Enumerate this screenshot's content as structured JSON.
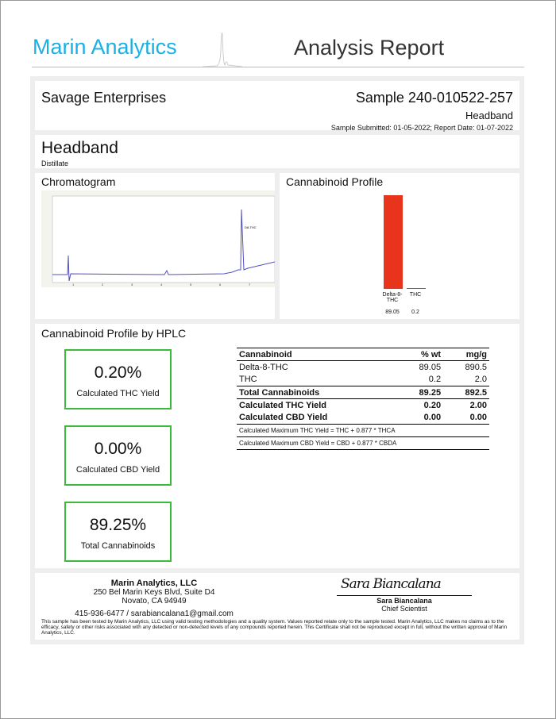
{
  "header": {
    "brand": "Marin Analytics",
    "title": "Analysis Report"
  },
  "client": {
    "name": "Savage Enterprises",
    "sample": "Sample 240-010522-257",
    "product": "Headband",
    "dates": "Sample Submitted: 01-05-2022;  Report Date: 01-07-2022"
  },
  "product": {
    "name": "Headband",
    "type": "Distillate"
  },
  "chromatogram": {
    "title": "Chromatogram",
    "peak_label": "D8-THC",
    "x_ticks": [
      "1",
      "2",
      "3",
      "4",
      "5",
      "6",
      "7"
    ]
  },
  "profile": {
    "title": "Cannabinoid Profile",
    "color": "#e8341c",
    "bars": [
      {
        "label": "Delta-8-THC",
        "value": 89.05,
        "value_label": "89.05"
      },
      {
        "label": "THC",
        "value": 0.2,
        "value_label": "0.2"
      }
    ]
  },
  "hplc": {
    "title": "Cannabinoid Profile by HPLC",
    "kpis": [
      {
        "value": "0.20%",
        "label": "Calculated THC Yield"
      },
      {
        "value": "0.00%",
        "label": "Calculated CBD Yield"
      },
      {
        "value": "89.25%",
        "label": "Total Cannabinoids"
      }
    ],
    "table": {
      "headers": [
        "Cannabinoid",
        "% wt",
        "mg/g"
      ],
      "rows": [
        [
          "Delta-8-THC",
          "89.05",
          "890.5"
        ],
        [
          "THC",
          "0.2",
          "2.0"
        ]
      ],
      "total": [
        "Total Cannabinoids",
        "89.25",
        "892.5"
      ],
      "thc": [
        "Calculated THC Yield",
        "0.20",
        "2.00"
      ],
      "cbd": [
        "Calculated CBD Yield",
        "0.00",
        "0.00"
      ],
      "note1": "Calculated Maximum THC Yield = THC + 0.877 * THCA",
      "note2": "Calculated Maximum CBD Yield = CBD + 0.877 * CBDA"
    }
  },
  "footer": {
    "company": "Marin Analytics, LLC",
    "address1": "250 Bel Marin Keys Blvd, Suite D4",
    "address2": "Novato, CA 94949",
    "contact": "415-936-6477 / sarabiancalana1@gmail.com",
    "signature": "Sara Biancalana",
    "signer": "Sara Biancalana",
    "role": "Chief Scientist",
    "disclaimer": "This sample has been tested by Marin Analytics, LLC using valid testing methodologies and a quality system.  Values reported relate only to the sample tested.  Marin Analytics, LLC makes no claims as to the efficacy, safety or other risks associated with any detected or non-detected levels of any compounds reported herein.  This Certificate shall not be reproduced except in full, without the written approval of Marin Analytics, LLC."
  }
}
